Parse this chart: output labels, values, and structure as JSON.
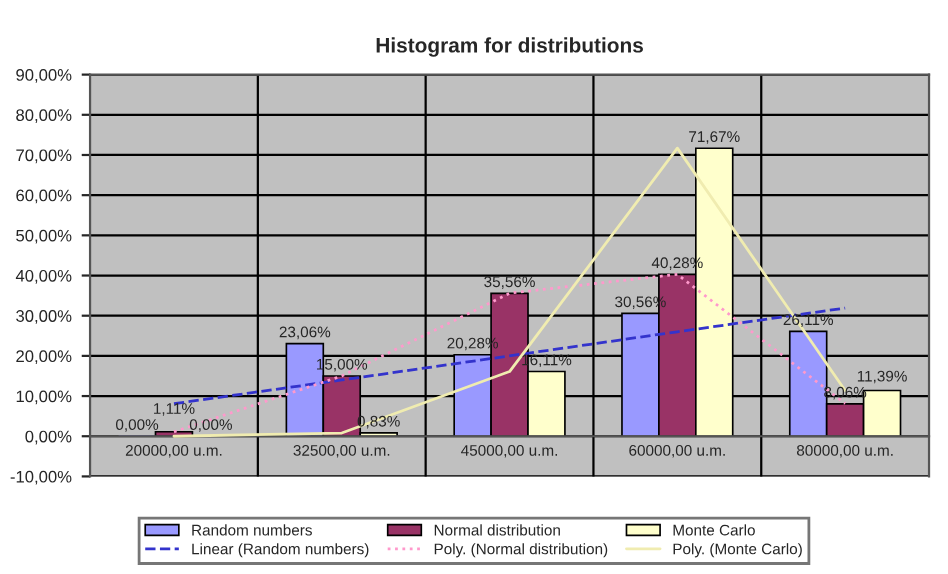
{
  "chart_data": {
    "type": "bar",
    "title": "Histogram for distributions",
    "categories": [
      "20000,00 u.m.",
      "32500,00 u.m.",
      "45000,00 u.m.",
      "60000,00 u.m.",
      "80000,00 u.m."
    ],
    "series": [
      {
        "name": "Random numbers",
        "color": "#9999ff",
        "values": [
          0.0,
          23.06,
          20.28,
          30.56,
          26.11
        ],
        "value_labels": [
          "0,00%",
          "23,06%",
          "20,28%",
          "30,56%",
          "26,11%"
        ]
      },
      {
        "name": "Normal distribution",
        "color": "#993366",
        "values": [
          1.11,
          15.0,
          35.56,
          40.28,
          8.06
        ],
        "value_labels": [
          "1,11%",
          "15,00%",
          "35,56%",
          "40,28%",
          "8,06%"
        ]
      },
      {
        "name": "Monte Carlo",
        "color": "#ffffcc",
        "values": [
          0.0,
          0.83,
          16.11,
          71.67,
          11.39
        ],
        "value_labels": [
          "0,00%",
          "0,83%",
          "16,11%",
          "71,67%",
          "11,39%"
        ]
      },
      {
        "name": "Linear (Random numbers)",
        "type": "line",
        "color": "#3333cc",
        "line_style": "dashed",
        "values": [
          8.1,
          14.0,
          20.0,
          26.0,
          31.9
        ]
      },
      {
        "name": "Poly. (Normal distribution)",
        "type": "line",
        "color": "#ff99cc",
        "line_style": "dotted",
        "values": [
          1.1,
          15.0,
          35.6,
          40.3,
          8.1
        ]
      },
      {
        "name": "Poly. (Monte Carlo)",
        "type": "line",
        "color": "#f0ecb0",
        "line_style": "solid",
        "values": [
          0.0,
          0.8,
          16.1,
          71.7,
          11.4
        ]
      }
    ],
    "ylim": [
      -10,
      90
    ],
    "yticks": [
      {
        "value": -10,
        "label": "-10,00%"
      },
      {
        "value": 0,
        "label": "0,00%"
      },
      {
        "value": 10,
        "label": "10,00%"
      },
      {
        "value": 20,
        "label": "20,00%"
      },
      {
        "value": 30,
        "label": "30,00%"
      },
      {
        "value": 40,
        "label": "40,00%"
      },
      {
        "value": 50,
        "label": "50,00%"
      },
      {
        "value": 60,
        "label": "60,00%"
      },
      {
        "value": 70,
        "label": "70,00%"
      },
      {
        "value": 80,
        "label": "80,00%"
      },
      {
        "value": 90,
        "label": "90,00%"
      }
    ],
    "grid": true,
    "legend": "bottom"
  }
}
